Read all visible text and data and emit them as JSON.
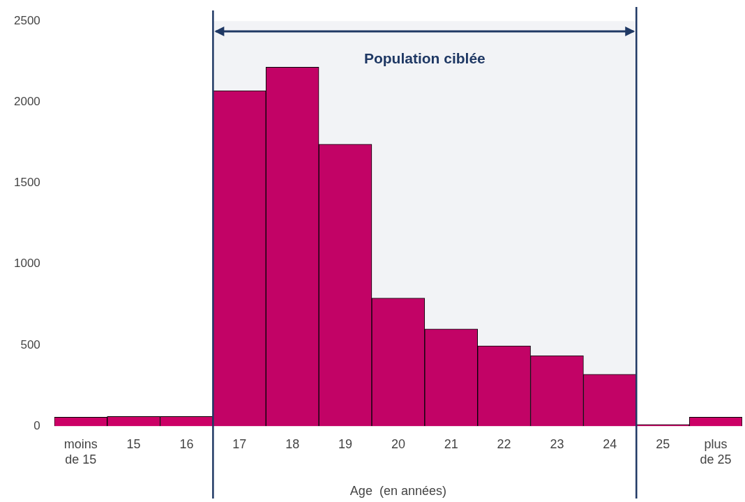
{
  "chart_data": {
    "type": "bar",
    "xlabel": "Age  (en années)",
    "categories": [
      "moins de 15",
      "15",
      "16",
      "17",
      "18",
      "19",
      "20",
      "21",
      "22",
      "23",
      "24",
      "25",
      "plus de 25"
    ],
    "values": [
      55,
      60,
      60,
      2070,
      2215,
      1740,
      790,
      600,
      495,
      435,
      320,
      10,
      55
    ],
    "color": "#cc0066",
    "ylim": [
      0,
      2500
    ],
    "yticks": [
      0,
      500,
      1000,
      1500,
      2000,
      2500
    ],
    "grid": false,
    "bands": [
      {
        "axis": "x",
        "from": "17",
        "to": "24",
        "label": "Population ciblée",
        "color": "#1f3864"
      }
    ]
  }
}
